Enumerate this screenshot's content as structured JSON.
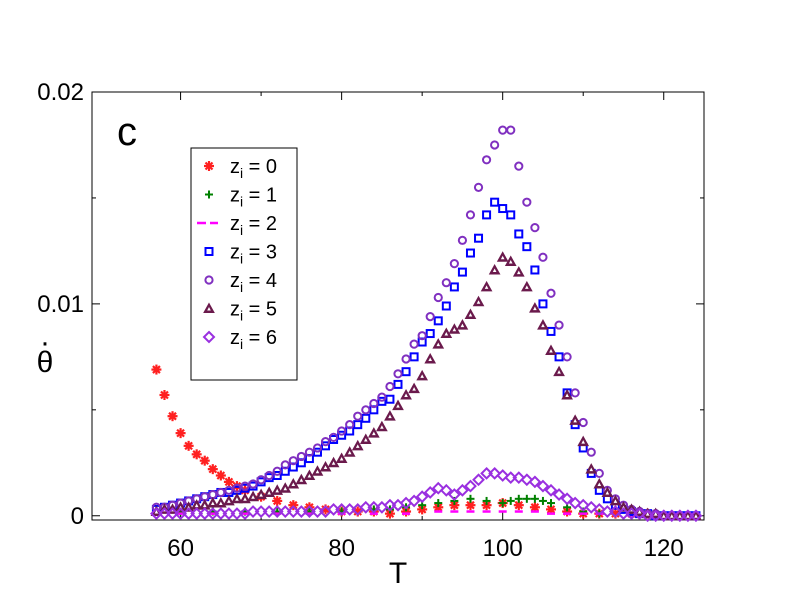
{
  "chart_data": {
    "type": "scatter",
    "panel_label": "c",
    "xlabel": "T",
    "ylabel": "θ",
    "ylabel_accent": "·",
    "xlim": [
      49,
      125
    ],
    "ylim": [
      -0.0002,
      0.02
    ],
    "xticks": [
      60,
      80,
      100,
      120
    ],
    "xtick_labels": [
      "60",
      "80",
      "100",
      "120"
    ],
    "yticks": [
      0,
      0.01,
      0.02
    ],
    "ytick_labels": [
      "0",
      "0.01",
      "0.02"
    ],
    "legend_position": "upper-left",
    "series": [
      {
        "name": "z_i = 0",
        "label_base": "z",
        "label_sub": "i",
        "label_rest": " = 0",
        "marker": "asterisk",
        "color": "#ff2020",
        "x": [
          57,
          58,
          59,
          60,
          61,
          62,
          63,
          64,
          65,
          66,
          67,
          68,
          70,
          72,
          74,
          76,
          78,
          80,
          82,
          84,
          86,
          88,
          90,
          92,
          94,
          96,
          98,
          100,
          102,
          104,
          106,
          108,
          110,
          112,
          114,
          116,
          118,
          120,
          122,
          124
        ],
        "y": [
          0.0069,
          0.0057,
          0.0047,
          0.0039,
          0.0033,
          0.0029,
          0.0026,
          0.0022,
          0.0019,
          0.0016,
          0.0014,
          0.0012,
          0.0009,
          0.0007,
          0.0005,
          0.0004,
          0.0003,
          0.0002,
          0.0002,
          0.0002,
          0.0001,
          0.0002,
          0.0003,
          0.0004,
          0.0005,
          0.0005,
          0.0005,
          0.0006,
          0.0005,
          0.0004,
          0.0003,
          0.0002,
          0.0001,
          0.0001,
          0.0001,
          0.0001,
          0.0001,
          0.0,
          0.0,
          0.0
        ]
      },
      {
        "name": "z_i = 1",
        "label_base": "z",
        "label_sub": "i",
        "label_rest": " = 1",
        "marker": "plus",
        "color": "#008000",
        "x": [
          57,
          60,
          64,
          68,
          72,
          76,
          80,
          84,
          86,
          88,
          90,
          92,
          94,
          96,
          98,
          100,
          101,
          102,
          103,
          104,
          105,
          106,
          108,
          110,
          112,
          116,
          120,
          124
        ],
        "y": [
          0.0002,
          0.0002,
          0.0002,
          0.0002,
          0.0002,
          0.0002,
          0.0002,
          0.0003,
          0.0003,
          0.0004,
          0.0005,
          0.0006,
          0.0007,
          0.0008,
          0.0007,
          0.0006,
          0.0007,
          0.0008,
          0.0008,
          0.0008,
          0.0007,
          0.0006,
          0.0004,
          0.0002,
          0.0001,
          0.0001,
          0.0,
          0.0
        ]
      },
      {
        "name": "z_i = 2",
        "label_base": "z",
        "label_sub": "i",
        "label_rest": " = 2",
        "marker": "dash",
        "color": "#ff00ff",
        "x": [
          57,
          60,
          64,
          68,
          72,
          76,
          80,
          84,
          88,
          92,
          94,
          96,
          98,
          100,
          102,
          104,
          106,
          108,
          110,
          112,
          116,
          120,
          124
        ],
        "y": [
          0.0001,
          0.0001,
          0.0001,
          0.0001,
          0.0001,
          0.0001,
          0.0001,
          0.0001,
          0.0001,
          0.0002,
          0.0002,
          0.0002,
          0.0002,
          0.0002,
          0.0002,
          0.0002,
          0.0001,
          0.0001,
          0.0001,
          0.0001,
          0.0,
          0.0,
          0.0
        ]
      },
      {
        "name": "z_i = 3",
        "label_base": "z",
        "label_sub": "i",
        "label_rest": " = 3",
        "marker": "square",
        "color": "#0000ff",
        "x": [
          57,
          58,
          59,
          60,
          61,
          62,
          63,
          64,
          65,
          66,
          67,
          68,
          69,
          70,
          71,
          72,
          73,
          74,
          75,
          76,
          77,
          78,
          79,
          80,
          81,
          82,
          83,
          84,
          85,
          86,
          87,
          88,
          89,
          90,
          91,
          92,
          93,
          94,
          95,
          96,
          97,
          98,
          99,
          100,
          101,
          102,
          103,
          104,
          105,
          106,
          107,
          108,
          109,
          110,
          111,
          112,
          113,
          114,
          115,
          116,
          117,
          118,
          119,
          120,
          121,
          122,
          123,
          124
        ],
        "y": [
          0.0003,
          0.0004,
          0.0005,
          0.0006,
          0.0007,
          0.0008,
          0.0009,
          0.001,
          0.0011,
          0.0011,
          0.0012,
          0.0013,
          0.0014,
          0.0016,
          0.0018,
          0.0019,
          0.0021,
          0.0023,
          0.0025,
          0.0027,
          0.003,
          0.0033,
          0.0036,
          0.0038,
          0.004,
          0.0043,
          0.0046,
          0.005,
          0.0054,
          0.0055,
          0.0062,
          0.0068,
          0.0075,
          0.0082,
          0.0086,
          0.0092,
          0.0099,
          0.0108,
          0.0115,
          0.0124,
          0.0131,
          0.0142,
          0.0148,
          0.0145,
          0.0142,
          0.0133,
          0.0127,
          0.0116,
          0.01,
          0.0087,
          0.0075,
          0.0058,
          0.0043,
          0.0032,
          0.002,
          0.0012,
          0.0008,
          0.0005,
          0.0003,
          0.0002,
          0.0001,
          0.0001,
          0.0,
          0.0,
          0.0,
          0.0,
          0.0,
          0.0
        ]
      },
      {
        "name": "z_i = 4",
        "label_base": "z",
        "label_sub": "i",
        "label_rest": " = 4",
        "marker": "circle",
        "color": "#8030c0",
        "x": [
          57,
          58,
          59,
          60,
          61,
          62,
          63,
          64,
          65,
          66,
          67,
          68,
          69,
          70,
          71,
          72,
          73,
          74,
          75,
          76,
          77,
          78,
          79,
          80,
          81,
          82,
          83,
          84,
          85,
          86,
          87,
          88,
          89,
          90,
          91,
          92,
          93,
          94,
          95,
          96,
          97,
          98,
          99,
          100,
          101,
          102,
          103,
          104,
          105,
          106,
          107,
          108,
          109,
          110,
          111,
          112,
          113,
          114,
          115,
          116,
          117,
          118,
          119,
          120,
          121,
          122,
          123,
          124
        ],
        "y": [
          0.0004,
          0.0004,
          0.0005,
          0.0006,
          0.0007,
          0.0008,
          0.0009,
          0.001,
          0.0011,
          0.0012,
          0.0013,
          0.0014,
          0.0015,
          0.0017,
          0.0019,
          0.0021,
          0.0024,
          0.0026,
          0.0028,
          0.003,
          0.0032,
          0.0035,
          0.0037,
          0.004,
          0.0043,
          0.0047,
          0.005,
          0.0053,
          0.0056,
          0.0061,
          0.0067,
          0.0074,
          0.0081,
          0.0085,
          0.0094,
          0.0103,
          0.011,
          0.0119,
          0.013,
          0.0142,
          0.0155,
          0.0168,
          0.0175,
          0.0182,
          0.0182,
          0.0165,
          0.0148,
          0.0136,
          0.0122,
          0.0105,
          0.009,
          0.0075,
          0.0058,
          0.0044,
          0.003,
          0.002,
          0.0012,
          0.0008,
          0.0005,
          0.0003,
          0.0002,
          0.0001,
          0.0001,
          0.0,
          0.0,
          0.0,
          0.0,
          0.0
        ]
      },
      {
        "name": "z_i = 5",
        "label_base": "z",
        "label_sub": "i",
        "label_rest": " = 5",
        "marker": "triangle",
        "color": "#6b1a4c",
        "x": [
          57,
          58,
          59,
          60,
          61,
          62,
          63,
          64,
          65,
          66,
          67,
          68,
          69,
          70,
          71,
          72,
          73,
          74,
          75,
          76,
          77,
          78,
          79,
          80,
          81,
          82,
          83,
          84,
          85,
          86,
          87,
          88,
          89,
          90,
          91,
          92,
          93,
          94,
          95,
          96,
          97,
          98,
          99,
          100,
          101,
          102,
          103,
          104,
          105,
          106,
          107,
          108,
          109,
          110,
          111,
          112,
          113,
          114,
          115,
          116,
          117,
          118,
          119,
          120,
          121,
          122,
          123,
          124
        ],
        "y": [
          0.0002,
          0.0003,
          0.0003,
          0.0004,
          0.0004,
          0.0005,
          0.0005,
          0.0006,
          0.0006,
          0.0007,
          0.0008,
          0.0008,
          0.0009,
          0.001,
          0.0011,
          0.0012,
          0.0013,
          0.0015,
          0.0017,
          0.0019,
          0.0021,
          0.0023,
          0.0025,
          0.0027,
          0.003,
          0.0033,
          0.0036,
          0.0039,
          0.0042,
          0.0047,
          0.0052,
          0.0057,
          0.006,
          0.0066,
          0.0074,
          0.0081,
          0.0086,
          0.0088,
          0.009,
          0.0095,
          0.0101,
          0.0108,
          0.0116,
          0.0122,
          0.012,
          0.0115,
          0.0108,
          0.0098,
          0.009,
          0.0078,
          0.0068,
          0.0057,
          0.0045,
          0.0035,
          0.0022,
          0.0015,
          0.0011,
          0.0007,
          0.0004,
          0.0003,
          0.0002,
          0.0001,
          0.0001,
          0.0,
          0.0,
          0.0,
          0.0,
          0.0
        ]
      },
      {
        "name": "z_i = 6",
        "label_base": "z",
        "label_sub": "i",
        "label_rest": " = 6",
        "marker": "diamond",
        "color": "#9a30e0",
        "x": [
          57,
          58,
          59,
          60,
          61,
          62,
          63,
          64,
          65,
          66,
          67,
          68,
          69,
          70,
          71,
          72,
          73,
          74,
          75,
          76,
          77,
          78,
          79,
          80,
          81,
          82,
          83,
          84,
          85,
          86,
          87,
          88,
          89,
          90,
          91,
          92,
          93,
          94,
          95,
          96,
          97,
          98,
          99,
          100,
          101,
          102,
          103,
          104,
          105,
          106,
          107,
          108,
          109,
          110,
          111,
          112,
          113,
          114,
          115,
          116,
          117,
          118,
          119,
          120,
          121,
          122,
          123,
          124
        ],
        "y": [
          0.0001,
          0.0001,
          0.0001,
          0.0001,
          0.0001,
          0.0001,
          0.0001,
          0.0001,
          0.0001,
          0.0001,
          0.0001,
          0.0001,
          0.0002,
          0.0002,
          0.0002,
          0.0002,
          0.0002,
          0.0002,
          0.0002,
          0.0002,
          0.0002,
          0.0002,
          0.0003,
          0.0003,
          0.0003,
          0.0003,
          0.0004,
          0.0004,
          0.0004,
          0.0005,
          0.0005,
          0.0006,
          0.0007,
          0.0009,
          0.0011,
          0.0013,
          0.0012,
          0.001,
          0.0012,
          0.0014,
          0.0017,
          0.002,
          0.002,
          0.0019,
          0.0018,
          0.0018,
          0.0017,
          0.0016,
          0.0014,
          0.0012,
          0.001,
          0.0008,
          0.0006,
          0.0005,
          0.0004,
          0.0003,
          0.0002,
          0.0002,
          0.0001,
          0.0001,
          0.0001,
          0.0,
          0.0,
          0.0,
          0.0,
          0.0,
          0.0,
          0.0
        ]
      }
    ]
  }
}
